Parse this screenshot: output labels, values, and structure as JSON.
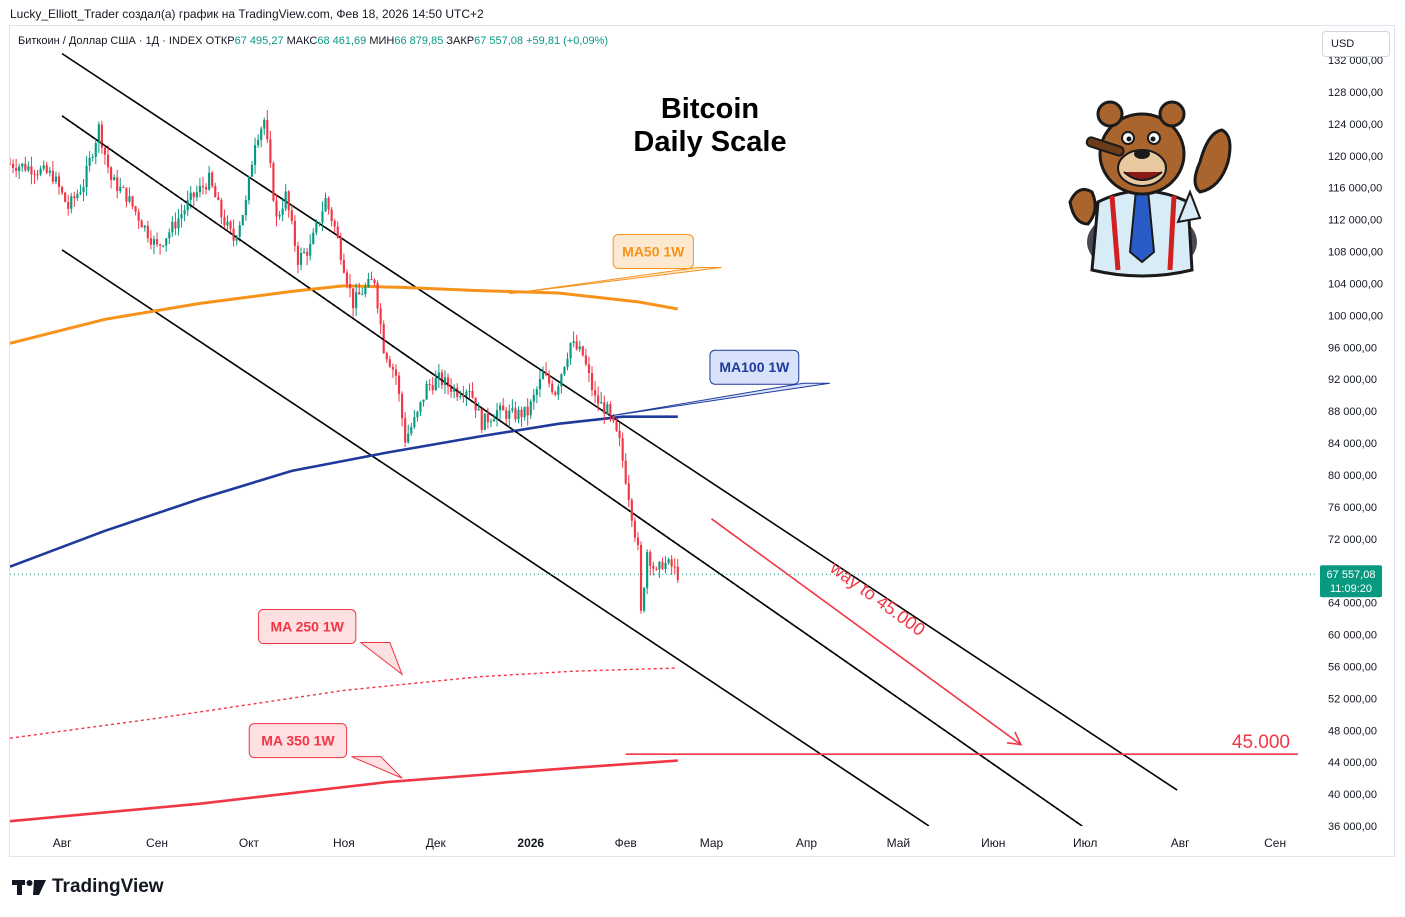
{
  "header": {
    "attribution": "Lucky_Elliott_Trader создал(а) график на TradingView.com, Фев 18, 2026 14:50 UTC+2"
  },
  "legend": {
    "symbol": "Биткоин / Доллар США · 1Д · INDEX",
    "open_label": "ОТКР",
    "open": "67 495,27",
    "high_label": "МАКС",
    "high": "68 461,69",
    "low_label": "МИН",
    "low": "66 879,85",
    "close_label": "ЗАКР",
    "close": "67 557,08",
    "change": "+59,81 (+0,09%)"
  },
  "currency_button": "USD",
  "brand": {
    "name": "TradingView",
    "logo_icon": "tradingview-logo-icon"
  },
  "mascot_icon": "bear-trader-icon",
  "colors": {
    "ma50": "#f7931a",
    "ma100": "#1e3a9b",
    "ma_red": "#f23645",
    "up": "#089981",
    "down": "#f23645",
    "channel": "#000000",
    "price_tag": "#089981"
  },
  "chart_data": {
    "type": "line",
    "title": "Bitcoin Daily Scale",
    "title_lines": [
      "Bitcoin",
      "Daily Scale"
    ],
    "ylim": [
      36000,
      132000
    ],
    "y_ticks": [
      132000,
      128000,
      124000,
      120000,
      116000,
      112000,
      108000,
      104000,
      100000,
      96000,
      92000,
      88000,
      84000,
      80000,
      76000,
      72000,
      68000,
      64000,
      60000,
      56000,
      52000,
      48000,
      44000,
      40000,
      36000
    ],
    "y_tick_labels": [
      "132 000,00",
      "128 000,00",
      "124 000,00",
      "120 000,00",
      "116 000,00",
      "112 000,00",
      "108 000,00",
      "104 000,00",
      "100 000,00",
      "96 000,00",
      "92 000,00",
      "88 000,00",
      "84 000,00",
      "80 000,00",
      "76 000,00",
      "72 000,00",
      "68 000,00",
      "64 000,00",
      "60 000,00",
      "56 000,00",
      "52 000,00",
      "48 000,00",
      "44 000,00",
      "40 000,00",
      "36 000,00"
    ],
    "x_ticks": [
      {
        "date": "2025-08-01",
        "label": "Авг"
      },
      {
        "date": "2025-09-01",
        "label": "Сен"
      },
      {
        "date": "2025-10-01",
        "label": "Окт"
      },
      {
        "date": "2025-11-01",
        "label": "Ноя"
      },
      {
        "date": "2025-12-01",
        "label": "Дек"
      },
      {
        "date": "2026-01-01",
        "label": "2026"
      },
      {
        "date": "2026-02-01",
        "label": "Фев"
      },
      {
        "date": "2026-03-01",
        "label": "Мар"
      },
      {
        "date": "2026-04-01",
        "label": "Апр"
      },
      {
        "date": "2026-05-01",
        "label": "Май"
      },
      {
        "date": "2026-06-01",
        "label": "Июн"
      },
      {
        "date": "2026-07-01",
        "label": "Июл"
      },
      {
        "date": "2026-08-01",
        "label": "Авг"
      },
      {
        "date": "2026-09-01",
        "label": "Сен"
      }
    ],
    "xlim": [
      "2025-07-15",
      "2026-09-15"
    ],
    "price_path": [
      [
        "2025-07-15",
        119000
      ],
      [
        "2025-07-22",
        118500
      ],
      [
        "2025-07-29",
        117500
      ],
      [
        "2025-08-03",
        113500
      ],
      [
        "2025-08-08",
        116500
      ],
      [
        "2025-08-13",
        123500
      ],
      [
        "2025-08-17",
        117000
      ],
      [
        "2025-08-22",
        115000
      ],
      [
        "2025-08-28",
        111000
      ],
      [
        "2025-09-01",
        108500
      ],
      [
        "2025-09-06",
        111000
      ],
      [
        "2025-09-12",
        114500
      ],
      [
        "2025-09-18",
        117000
      ],
      [
        "2025-09-22",
        112500
      ],
      [
        "2025-09-26",
        109500
      ],
      [
        "2025-09-30",
        114000
      ],
      [
        "2025-10-03",
        122000
      ],
      [
        "2025-10-06",
        124500
      ],
      [
        "2025-10-10",
        112000
      ],
      [
        "2025-10-13",
        115000
      ],
      [
        "2025-10-17",
        107000
      ],
      [
        "2025-10-21",
        108500
      ],
      [
        "2025-10-26",
        114500
      ],
      [
        "2025-10-29",
        111000
      ],
      [
        "2025-11-04",
        101500
      ],
      [
        "2025-11-07",
        103000
      ],
      [
        "2025-11-11",
        104500
      ],
      [
        "2025-11-14",
        96000
      ],
      [
        "2025-11-18",
        92500
      ],
      [
        "2025-11-21",
        84500
      ],
      [
        "2025-11-25",
        87500
      ],
      [
        "2025-11-28",
        91000
      ],
      [
        "2025-12-02",
        92000
      ],
      [
        "2025-12-08",
        90500
      ],
      [
        "2025-12-12",
        91000
      ],
      [
        "2025-12-16",
        86500
      ],
      [
        "2025-12-21",
        88000
      ],
      [
        "2025-12-26",
        87500
      ],
      [
        "2025-12-31",
        87800
      ],
      [
        "2026-01-05",
        92500
      ],
      [
        "2026-01-09",
        90500
      ],
      [
        "2026-01-14",
        96500
      ],
      [
        "2026-01-18",
        95000
      ],
      [
        "2026-01-22",
        89500
      ],
      [
        "2026-01-26",
        88000
      ],
      [
        "2026-01-30",
        84000
      ],
      [
        "2026-02-02",
        77500
      ],
      [
        "2026-02-05",
        70500
      ],
      [
        "2026-02-06",
        62500
      ],
      [
        "2026-02-08",
        70500
      ],
      [
        "2026-02-11",
        67500
      ],
      [
        "2026-02-13",
        69000
      ],
      [
        "2026-02-16",
        68500
      ],
      [
        "2026-02-18",
        67557
      ]
    ],
    "series": [
      {
        "name": "MA50 1W",
        "style": "solid",
        "points": [
          [
            "2025-07-15",
            96500
          ],
          [
            "2025-08-15",
            99500
          ],
          [
            "2025-09-15",
            101500
          ],
          [
            "2025-10-15",
            103000
          ],
          [
            "2025-11-01",
            103700
          ],
          [
            "2025-11-20",
            103500
          ],
          [
            "2025-12-15",
            103100
          ],
          [
            "2026-01-10",
            102800
          ],
          [
            "2026-02-05",
            101700
          ],
          [
            "2026-02-18",
            100800
          ]
        ]
      },
      {
        "name": "MA100 1W",
        "style": "solid",
        "points": [
          [
            "2025-07-15",
            68500
          ],
          [
            "2025-08-15",
            73000
          ],
          [
            "2025-09-15",
            77000
          ],
          [
            "2025-10-15",
            80500
          ],
          [
            "2025-11-15",
            82800
          ],
          [
            "2025-12-15",
            84800
          ],
          [
            "2026-01-10",
            86400
          ],
          [
            "2026-01-31",
            87300
          ],
          [
            "2026-02-18",
            87300
          ]
        ]
      },
      {
        "name": "MA 250 1W",
        "style": "dotted",
        "points": [
          [
            "2025-07-15",
            47000
          ],
          [
            "2025-09-01",
            49500
          ],
          [
            "2025-11-01",
            53000
          ],
          [
            "2025-12-15",
            54700
          ],
          [
            "2026-01-15",
            55400
          ],
          [
            "2026-02-18",
            55800
          ]
        ]
      },
      {
        "name": "MA 350 1W",
        "style": "solid",
        "points": [
          [
            "2025-07-15",
            36600
          ],
          [
            "2025-09-15",
            38800
          ],
          [
            "2025-11-15",
            41500
          ],
          [
            "2026-01-15",
            43300
          ],
          [
            "2026-02-18",
            44200
          ]
        ]
      }
    ],
    "channel_lines": [
      [
        [
          "2025-08-01",
          132800
        ],
        [
          "2026-07-31",
          40500
        ]
      ],
      [
        [
          "2025-08-01",
          108200
        ],
        [
          "2026-05-11",
          36000
        ]
      ],
      [
        [
          "2025-08-01",
          125000
        ],
        [
          "2026-06-30",
          36000
        ]
      ]
    ],
    "horizontal_level": {
      "label": "45.000",
      "value": 45000,
      "from": "2026-02-01",
      "to": "2026-09-30"
    },
    "annotation_arrow": {
      "label": "way to 45.000",
      "from": [
        "2026-03-01",
        74500
      ],
      "to": [
        "2026-06-10",
        46200
      ]
    },
    "callouts": [
      {
        "name": "MA50 1W",
        "target": [
          "2025-12-25",
          102700
        ],
        "box": [
          "2026-02-10",
          108000
        ]
      },
      {
        "name": "MA100 1W",
        "target": [
          "2026-01-27",
          87400
        ],
        "box": [
          "2026-03-15",
          93500
        ]
      },
      {
        "name": "MA 250 1W",
        "target": [
          "2025-11-20",
          55000
        ],
        "box": [
          "2025-10-20",
          61000
        ]
      },
      {
        "name": "MA 350 1W",
        "target": [
          "2025-11-20",
          42000
        ],
        "box": [
          "2025-10-17",
          46700
        ]
      }
    ],
    "last_price": {
      "value": 67557.08,
      "label": "67 557,08",
      "countdown": "11:09:20"
    }
  }
}
